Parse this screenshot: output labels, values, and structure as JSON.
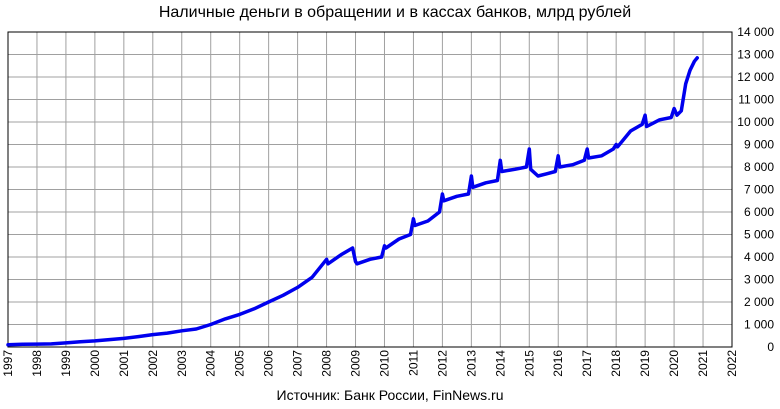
{
  "chart_data": {
    "type": "line",
    "title": "Наличные деньги в обращении и в кассах банков, млрд рублей",
    "source": "Источник: Банк России, FinNews.ru",
    "xlabel": "",
    "ylabel": "",
    "xlim": [
      1997,
      2022
    ],
    "ylim": [
      0,
      14000
    ],
    "grid": true,
    "legend": "none",
    "x_ticks": [
      "1997",
      "1998",
      "1999",
      "2000",
      "2001",
      "2002",
      "2003",
      "2004",
      "2005",
      "2006",
      "2007",
      "2008",
      "2009",
      "2010",
      "2011",
      "2012",
      "2013",
      "2014",
      "2015",
      "2016",
      "2017",
      "2018",
      "2019",
      "2020",
      "2021",
      "2022"
    ],
    "y_ticks": [
      "0",
      "1 000",
      "2 000",
      "3 000",
      "4 000",
      "5 000",
      "6 000",
      "7 000",
      "8 000",
      "9 000",
      "10 000",
      "11 000",
      "12 000",
      "13 000",
      "14 000"
    ],
    "line_color": "#0000ee",
    "series": [
      {
        "x": [
          1997.0,
          1997.5,
          1998.0,
          1998.5,
          1999.0,
          1999.5,
          2000.0,
          2000.5,
          2001.0,
          2001.5,
          2002.0,
          2002.5,
          2003.0,
          2003.5,
          2004.0,
          2004.5,
          2005.0,
          2005.5,
          2006.0,
          2006.5,
          2007.0,
          2007.5,
          2008.0,
          2008.05,
          2008.5,
          2008.9,
          2009.0,
          2009.05,
          2009.5,
          2009.9,
          2010.0,
          2010.05,
          2010.5,
          2010.9,
          2011.0,
          2011.05,
          2011.5,
          2011.9,
          2012.0,
          2012.05,
          2012.5,
          2012.9,
          2013.0,
          2013.05,
          2013.5,
          2013.9,
          2014.0,
          2014.05,
          2014.5,
          2014.9,
          2015.0,
          2015.05,
          2015.3,
          2015.6,
          2015.9,
          2016.0,
          2016.05,
          2016.5,
          2016.9,
          2017.0,
          2017.05,
          2017.5,
          2017.9,
          2018.0,
          2018.05,
          2018.5,
          2018.9,
          2019.0,
          2019.05,
          2019.5,
          2019.9,
          2020.0,
          2020.1,
          2020.25,
          2020.4,
          2020.55,
          2020.7,
          2020.8
        ],
        "values": [
          100,
          120,
          130,
          140,
          180,
          230,
          270,
          330,
          380,
          460,
          550,
          620,
          720,
          800,
          1000,
          1250,
          1450,
          1700,
          2000,
          2300,
          2650,
          3100,
          3900,
          3700,
          4100,
          4400,
          3800,
          3700,
          3900,
          4000,
          4500,
          4400,
          4800,
          5000,
          5700,
          5400,
          5600,
          6000,
          6800,
          6500,
          6700,
          6800,
          7600,
          7100,
          7300,
          7400,
          8300,
          7800,
          7900,
          8000,
          8800,
          7900,
          7600,
          7700,
          7800,
          8500,
          8000,
          8100,
          8300,
          8800,
          8400,
          8500,
          8800,
          9000,
          8900,
          9600,
          9900,
          10300,
          9800,
          10100,
          10200,
          10600,
          10300,
          10500,
          11700,
          12300,
          12700,
          12850
        ]
      }
    ]
  }
}
